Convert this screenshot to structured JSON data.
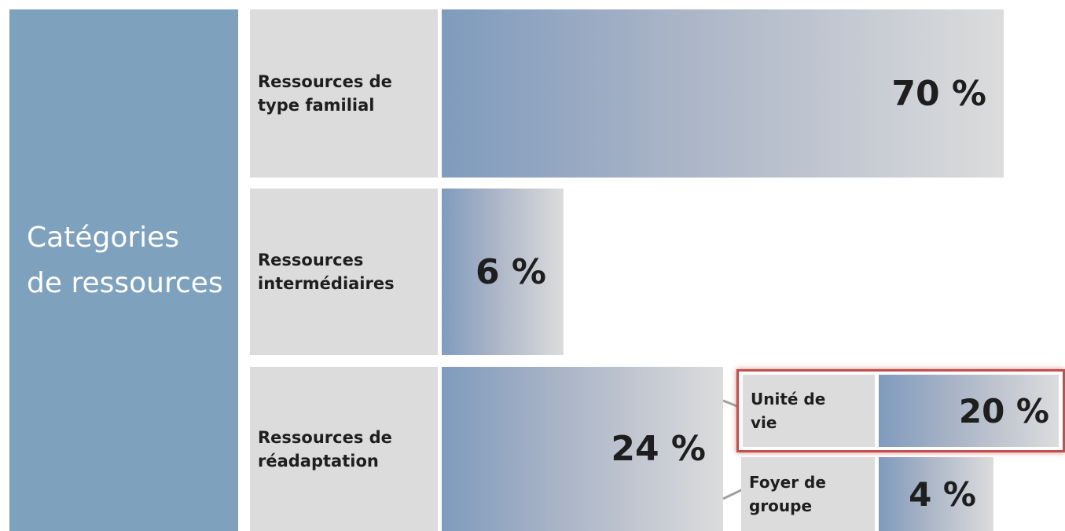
{
  "title": "Catégories de ressources",
  "categories": [
    {
      "label": "Ressources de type familial",
      "value": "70 %"
    },
    {
      "label": "Ressources intermédiaires",
      "value": "6 %"
    },
    {
      "label": "Ressources de réadaptation",
      "value": "24 %",
      "children": [
        {
          "label": "Unité de vie",
          "value": "20 %"
        },
        {
          "label": "Foyer de groupe",
          "value": "4 %"
        }
      ]
    }
  ]
}
